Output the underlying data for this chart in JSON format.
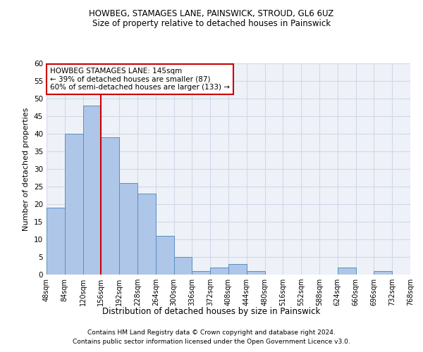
{
  "title1": "HOWBEG, STAMAGES LANE, PAINSWICK, STROUD, GL6 6UZ",
  "title2": "Size of property relative to detached houses in Painswick",
  "xlabel": "Distribution of detached houses by size in Painswick",
  "ylabel": "Number of detached properties",
  "bar_values": [
    19,
    40,
    48,
    39,
    26,
    23,
    11,
    5,
    1,
    2,
    3,
    1,
    0,
    0,
    0,
    0,
    2,
    0,
    1,
    0
  ],
  "bin_labels": [
    "48sqm",
    "84sqm",
    "120sqm",
    "156sqm",
    "192sqm",
    "228sqm",
    "264sqm",
    "300sqm",
    "336sqm",
    "372sqm",
    "408sqm",
    "444sqm",
    "480sqm",
    "516sqm",
    "552sqm",
    "588sqm",
    "624sqm",
    "660sqm",
    "696sqm",
    "732sqm",
    "768sqm"
  ],
  "bar_color": "#aec6e8",
  "bar_edge_color": "#5a8fc0",
  "grid_color": "#d0d8e8",
  "background_color": "#eef2f8",
  "vline_x_idx": 2,
  "vline_color": "#cc0000",
  "annotation_text": "HOWBEG STAMAGES LANE: 145sqm\n← 39% of detached houses are smaller (87)\n60% of semi-detached houses are larger (133) →",
  "annotation_box_color": "#ffffff",
  "annotation_box_edge": "#cc0000",
  "ylim": [
    0,
    60
  ],
  "yticks": [
    0,
    5,
    10,
    15,
    20,
    25,
    30,
    35,
    40,
    45,
    50,
    55,
    60
  ],
  "footnote1": "Contains HM Land Registry data © Crown copyright and database right 2024.",
  "footnote2": "Contains public sector information licensed under the Open Government Licence v3.0."
}
